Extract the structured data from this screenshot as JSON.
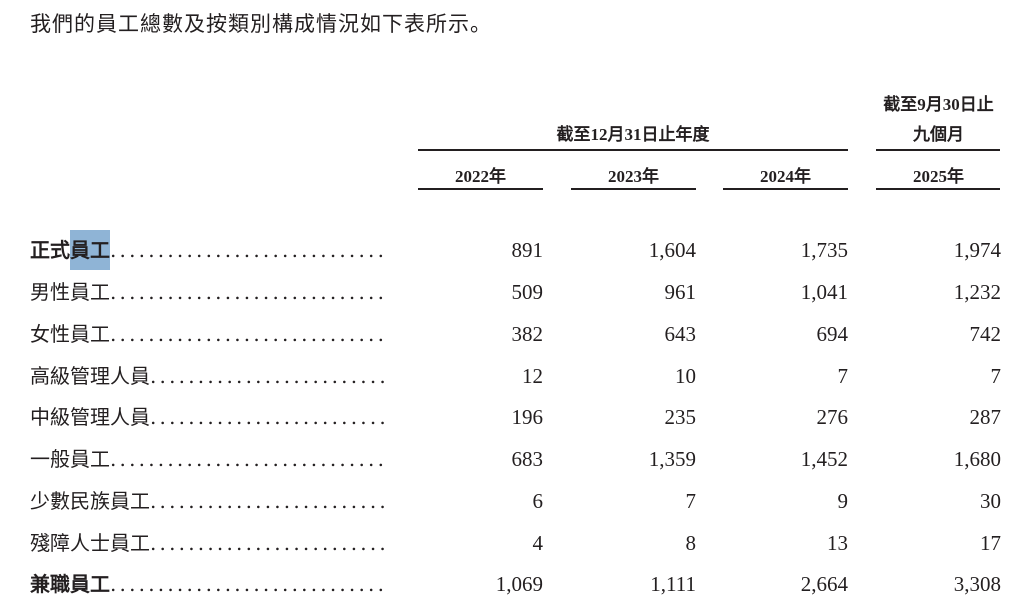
{
  "intro": "我們的員工總數及按類別構成情況如下表所示。",
  "header": {
    "group_fy": "截至12月31日止年度",
    "group_9m_line1": "截至9月30日止",
    "group_9m_line2": "九個月",
    "years": [
      "2022年",
      "2023年",
      "2024年",
      "2025年"
    ]
  },
  "rows": [
    {
      "label_a": "正式",
      "label_b": "員工",
      "bold": true,
      "highlighted": "員工",
      "values": [
        "891",
        "1,604",
        "1,735",
        "1,974"
      ]
    },
    {
      "label_a": "男性員工",
      "label_b": "",
      "values": [
        "509",
        "961",
        "1,041",
        "1,232"
      ]
    },
    {
      "label_a": "女性員工",
      "label_b": "",
      "values": [
        "382",
        "643",
        "694",
        "742"
      ]
    },
    {
      "label_a": "高級管理人員",
      "label_b": "",
      "values": [
        "12",
        "10",
        "7",
        "7"
      ]
    },
    {
      "label_a": "中級管理人員",
      "label_b": "",
      "values": [
        "196",
        "235",
        "276",
        "287"
      ]
    },
    {
      "label_a": "一般員工",
      "label_b": "",
      "values": [
        "683",
        "1,359",
        "1,452",
        "1,680"
      ]
    },
    {
      "label_a": "少數民族員工",
      "label_b": "",
      "values": [
        "6",
        "7",
        "9",
        "30"
      ]
    },
    {
      "label_a": "殘障人士員工",
      "label_b": "",
      "values": [
        "4",
        "8",
        "13",
        "17"
      ]
    },
    {
      "label_a": "兼職員工",
      "label_b": "",
      "bold": true,
      "values": [
        "1,069",
        "1,111",
        "2,664",
        "3,308"
      ]
    }
  ],
  "leader": "........................................",
  "colors": {
    "text": "#231f20",
    "selection": "#8fb4d6"
  }
}
